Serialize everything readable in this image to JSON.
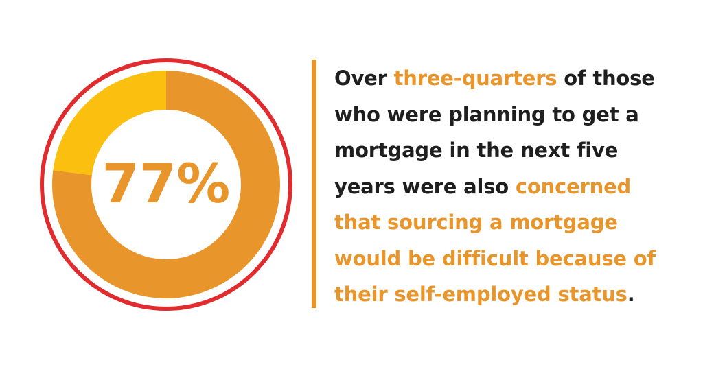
{
  "colors": {
    "primary": "#E8962C",
    "secondary": "#FBC00F",
    "ring": "#E02B2F",
    "text": "#1f1f1f",
    "background": "#ffffff"
  },
  "chart_data": {
    "type": "pie",
    "style": "donut",
    "center_label": "77%",
    "slices": [
      {
        "value": 77,
        "color": "#E8962C"
      },
      {
        "value": 23,
        "color": "#FBC00F"
      }
    ]
  },
  "statement": {
    "line1_a": "Over ",
    "line1_hl": "three-quarters",
    "line1_b": " of those",
    "line2": "who were planning to get a",
    "line3": "mortgage in the next five",
    "line4_a": "years were also ",
    "line4_hl": "concerned",
    "line5_hl": "that sourcing a mortgage",
    "line6_hl": "would be difficult because of",
    "line7_hl": "their self-employed status",
    "line7_end": "."
  }
}
